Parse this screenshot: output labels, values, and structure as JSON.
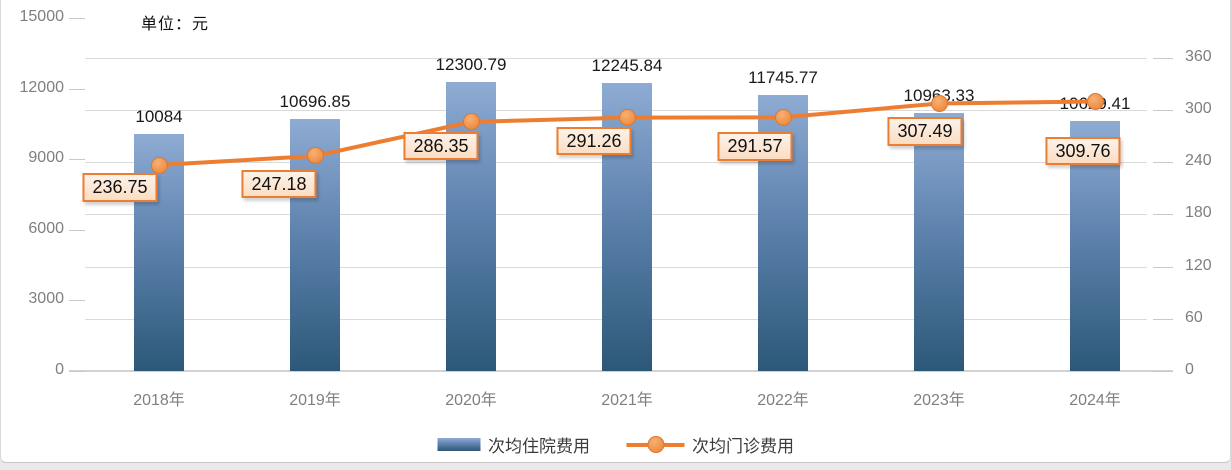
{
  "header": {
    "unit_label": "单位：元"
  },
  "colors": {
    "bar_gradient_top": "#8EABD3",
    "bar_gradient_bottom": "#2C5878",
    "line": "#ED7D31",
    "marker_fill": "#F0964E",
    "point_label_bg": "#FBDDC3",
    "point_label_border": "#ED7D31",
    "gridline": "#DADADA",
    "axis_text": "#7F7F7F"
  },
  "chart_data": {
    "type": "combo-bar-line",
    "title": "",
    "unit_note": "单位：元",
    "categories": [
      "2018年",
      "2019年",
      "2020年",
      "2021年",
      "2022年",
      "2023年",
      "2024年"
    ],
    "series": [
      {
        "name": "次均住院费用",
        "chart": "bar",
        "axis": "left",
        "values": [
          10084,
          10696.85,
          12300.79,
          12245.84,
          11745.77,
          10963.33,
          10629.41
        ],
        "labels": [
          "10084",
          "10696.85",
          "12300.79",
          "12245.84",
          "11745.77",
          "10963.33",
          "10629.41"
        ]
      },
      {
        "name": "次均门诊费用",
        "chart": "line",
        "axis": "right",
        "values": [
          236.75,
          247.18,
          286.35,
          291.26,
          291.57,
          307.49,
          309.76
        ],
        "labels": [
          "236.75",
          "247.18",
          "286.35",
          "291.26",
          "291.57",
          "307.49",
          "309.76"
        ]
      }
    ],
    "left_axis": {
      "min": 0,
      "max": 15000,
      "step": 3000,
      "tick_labels": [
        "0",
        "3000",
        "6000",
        "9000",
        "12000",
        "15000"
      ]
    },
    "right_axis": {
      "min": 0,
      "max": 360,
      "step": 60,
      "tick_labels": [
        "0",
        "60",
        "120",
        "180",
        "240",
        "300",
        "360"
      ]
    },
    "grid": true,
    "legend_position": "bottom"
  },
  "legend": {
    "items": [
      {
        "label": "次均住院费用",
        "marker": "bar-swatch"
      },
      {
        "label": "次均门诊费用",
        "marker": "line-with-dot"
      }
    ]
  }
}
